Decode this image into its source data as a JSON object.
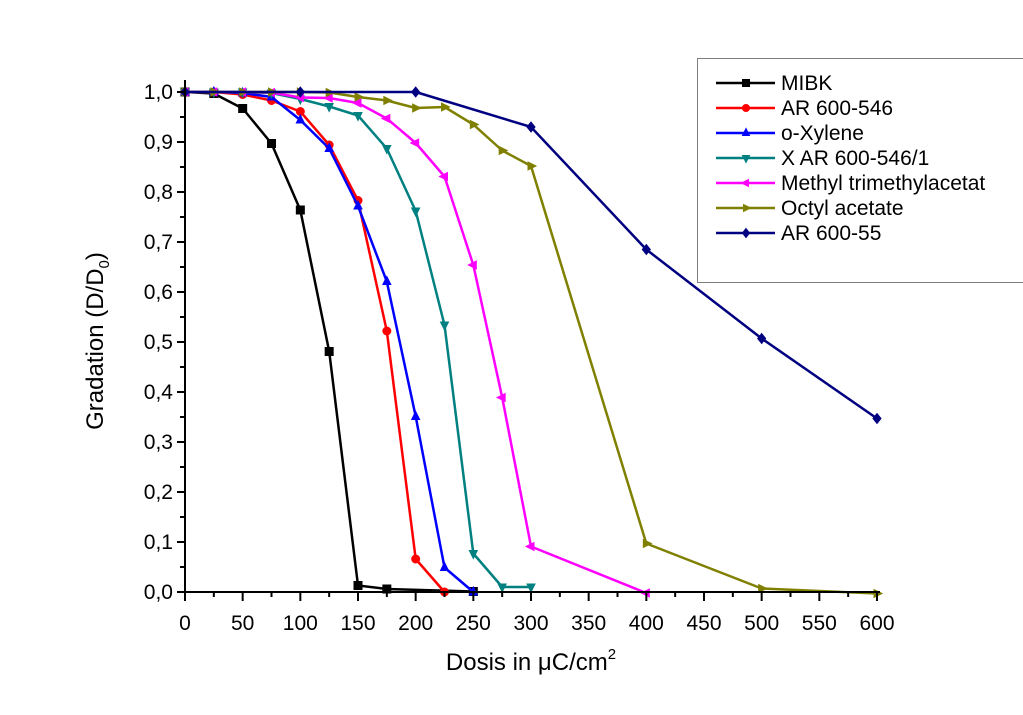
{
  "chart_data": {
    "type": "line",
    "title": "",
    "xlabel": "Dosis in μC/cm",
    "xlabel_superscript": "2",
    "ylabel": "Gradation (D/D",
    "ylabel_subscript": "0",
    "ylabel_suffix": ")",
    "xlim": [
      0,
      600
    ],
    "ylim": [
      0,
      1.0
    ],
    "x_ticks": [
      "0",
      "50",
      "100",
      "150",
      "200",
      "250",
      "300",
      "350",
      "400",
      "450",
      "500",
      "550",
      "600"
    ],
    "y_ticks": [
      "0,0",
      "0,1",
      "0,2",
      "0,3",
      "0,4",
      "0,5",
      "0,6",
      "0,7",
      "0,8",
      "0,9",
      "1,0"
    ],
    "grid": false,
    "legend_position": "top-right",
    "series": [
      {
        "name": "MIBK",
        "color": "#000000",
        "marker": "square",
        "x": [
          0,
          25,
          50,
          75,
          100,
          125,
          150,
          175,
          250
        ],
        "y": [
          1.0,
          0.997,
          0.967,
          0.897,
          0.764,
          0.481,
          0.013,
          0.006,
          0.001
        ]
      },
      {
        "name": "AR 600-546",
        "color": "#ff0000",
        "marker": "circle",
        "x": [
          0,
          25,
          50,
          75,
          100,
          125,
          150,
          175,
          200,
          225
        ],
        "y": [
          1.0,
          1.0,
          0.995,
          0.983,
          0.961,
          0.894,
          0.783,
          0.522,
          0.066,
          0.0
        ]
      },
      {
        "name": "o-Xylene",
        "color": "#0000ff",
        "marker": "triangle-up",
        "x": [
          0,
          25,
          50,
          75,
          100,
          125,
          150,
          175,
          200,
          225,
          250
        ],
        "y": [
          1.0,
          1.0,
          0.998,
          0.99,
          0.944,
          0.887,
          0.772,
          0.621,
          0.351,
          0.049,
          0.0
        ]
      },
      {
        "name": "X AR 600-546/1",
        "color": "#008080",
        "marker": "triangle-down",
        "x": [
          0,
          25,
          50,
          75,
          100,
          125,
          150,
          175,
          200,
          225,
          250,
          275,
          300
        ],
        "y": [
          1.0,
          1.0,
          1.0,
          0.998,
          0.986,
          0.971,
          0.953,
          0.887,
          0.762,
          0.534,
          0.077,
          0.01,
          0.01
        ]
      },
      {
        "name": "Methyl trimethylacetat",
        "color": "#ff00ff",
        "marker": "triangle-left",
        "x": [
          0,
          25,
          50,
          75,
          100,
          125,
          150,
          175,
          200,
          225,
          250,
          275,
          300,
          400
        ],
        "y": [
          1.0,
          1.0,
          1.0,
          0.999,
          0.989,
          0.988,
          0.978,
          0.947,
          0.898,
          0.831,
          0.654,
          0.389,
          0.091,
          -0.002
        ]
      },
      {
        "name": "Octyl acetate",
        "color": "#808000",
        "marker": "triangle-right",
        "x": [
          0,
          25,
          50,
          75,
          100,
          125,
          150,
          175,
          200,
          225,
          250,
          275,
          300,
          400,
          500,
          600
        ],
        "y": [
          1.0,
          1.0,
          1.0,
          1.0,
          1.0,
          0.999,
          0.99,
          0.983,
          0.968,
          0.97,
          0.935,
          0.883,
          0.852,
          0.097,
          0.007,
          -0.003
        ]
      },
      {
        "name": "AR 600-55",
        "color": "#000080",
        "marker": "diamond",
        "x": [
          0,
          100,
          200,
          300,
          400,
          500,
          600
        ],
        "y": [
          1.0,
          1.0,
          1.0,
          0.93,
          0.685,
          0.507,
          0.347
        ]
      }
    ]
  }
}
